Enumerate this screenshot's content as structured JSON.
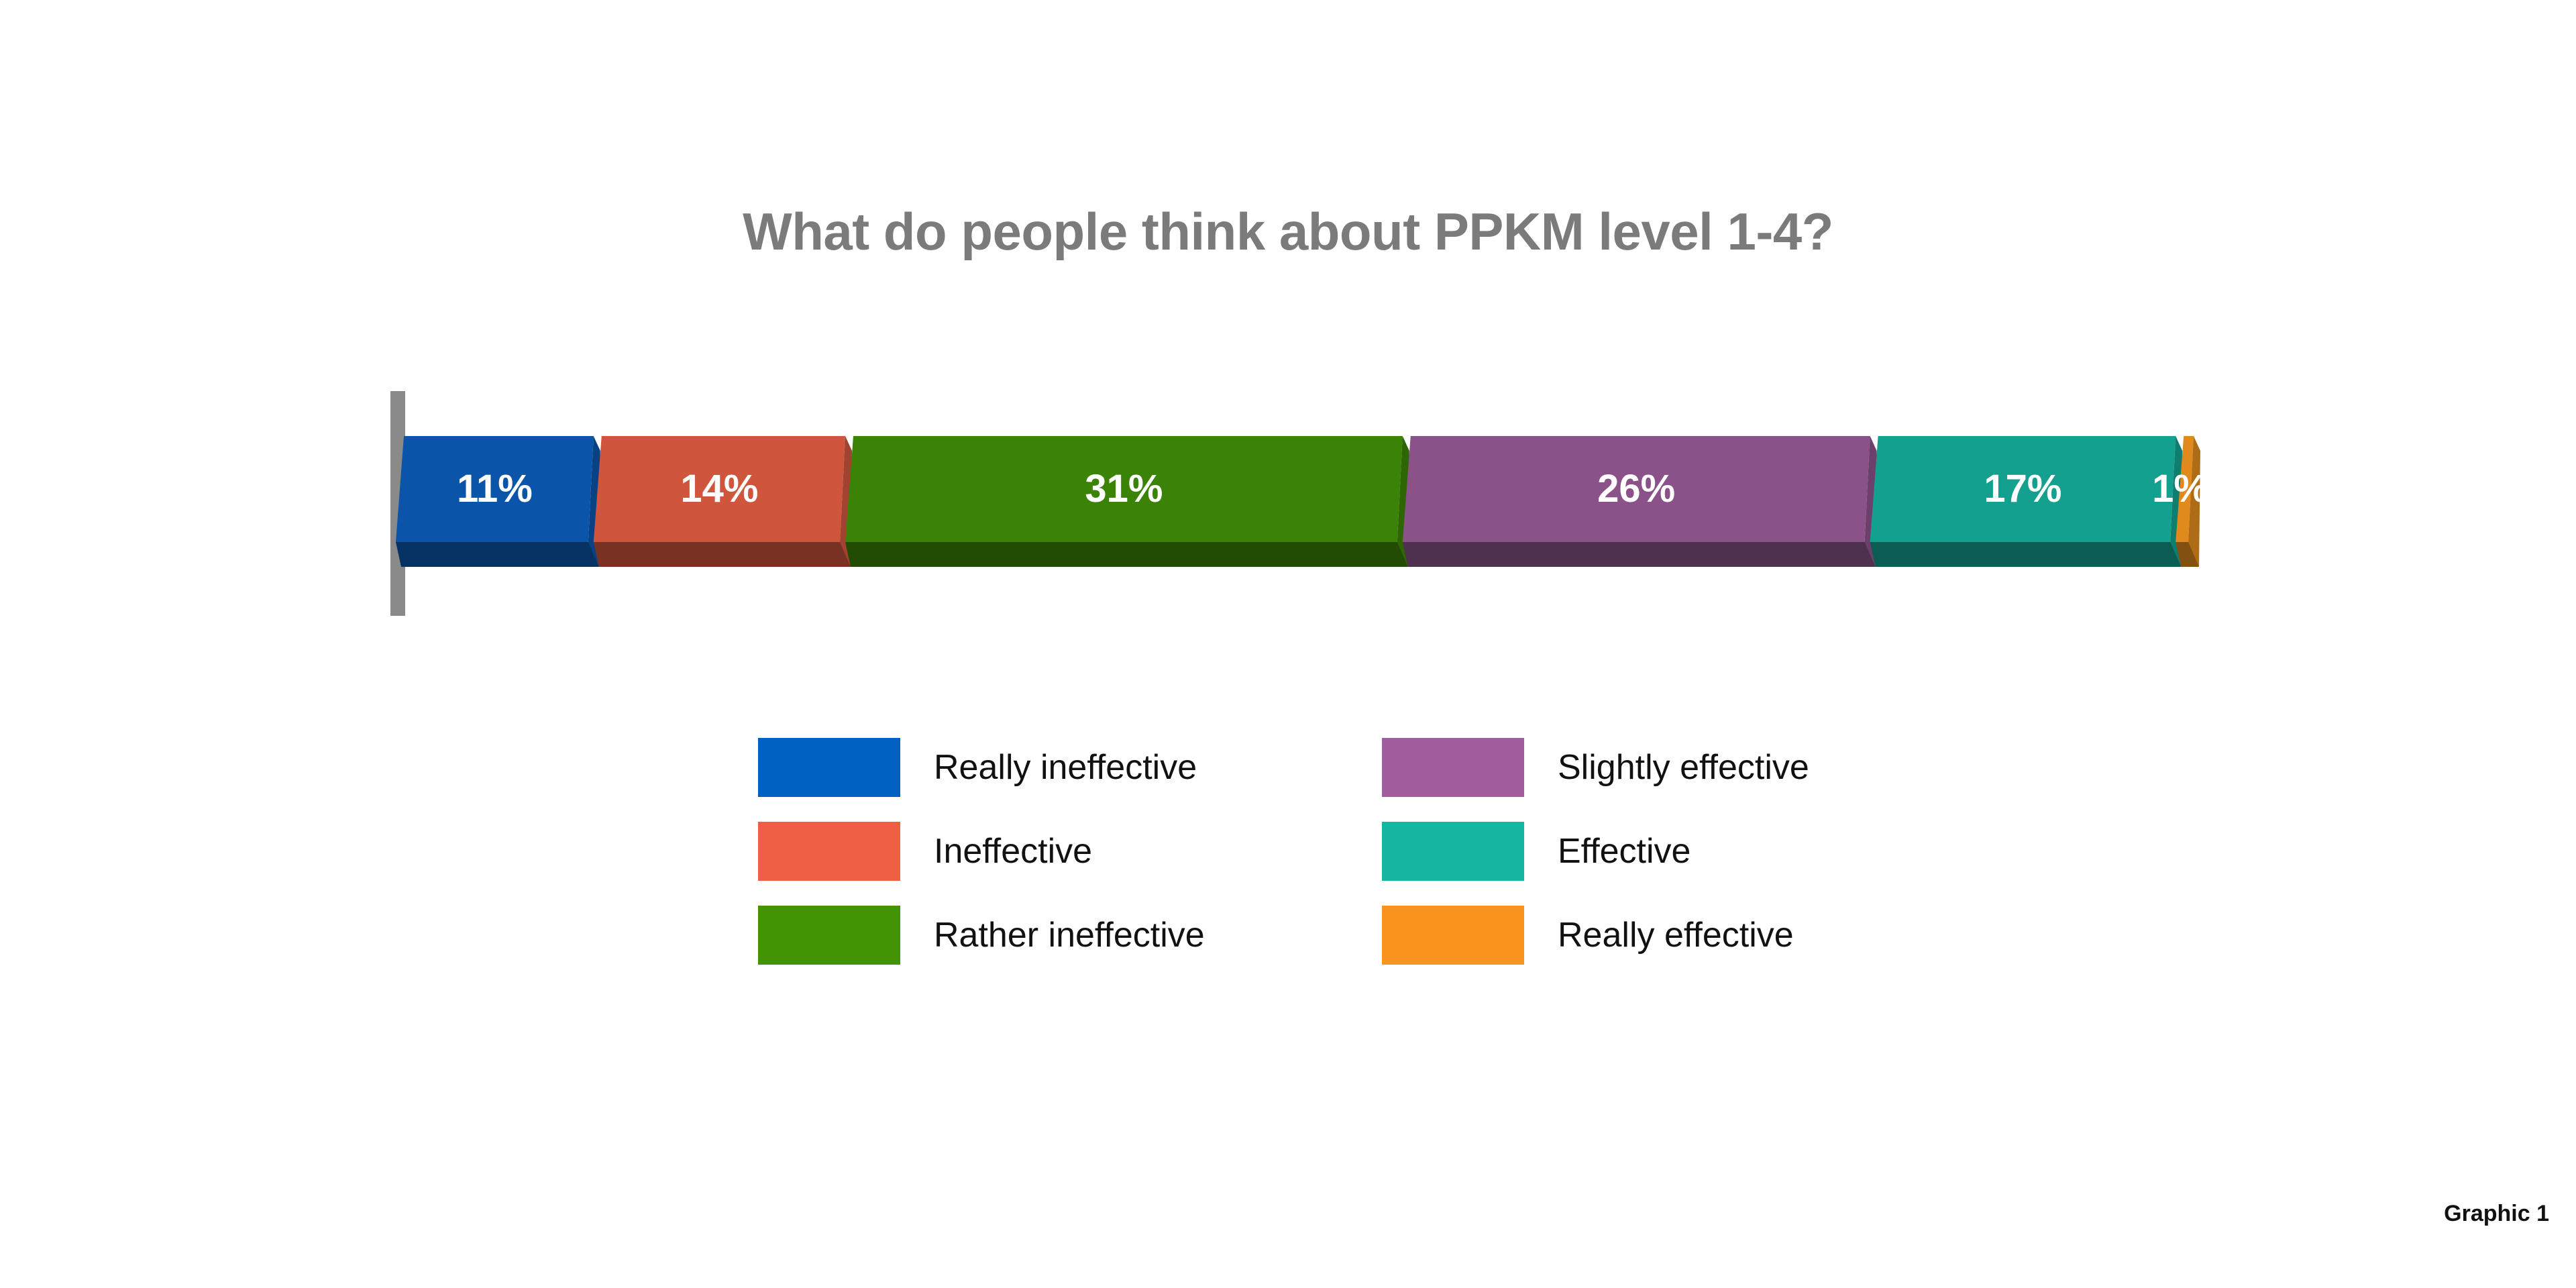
{
  "chart_data": {
    "type": "bar",
    "orientation": "horizontal-stacked",
    "title": "What do people think about PPKM level 1-4?",
    "categories": [
      "Really ineffective",
      "Ineffective",
      "Rather ineffective",
      "Slightly effective",
      "Effective",
      "Really effective"
    ],
    "values": [
      11,
      14,
      31,
      26,
      17,
      1
    ],
    "data_labels": [
      "11%",
      "14%",
      "31%",
      "26%",
      "17%",
      "1%"
    ],
    "unit": "%",
    "xlim": [
      0,
      100
    ],
    "colors": [
      "#0a55aa",
      "#d0553d",
      "#3b8306",
      "#8a5288",
      "#13a08f",
      "#e08a1e"
    ],
    "legend_colors": [
      "#0061c2",
      "#ef5f46",
      "#439405",
      "#a05c9c",
      "#14b5a1",
      "#f7931e"
    ],
    "legend_placement": "bottom"
  },
  "footer": {
    "note": "Graphic 1"
  }
}
